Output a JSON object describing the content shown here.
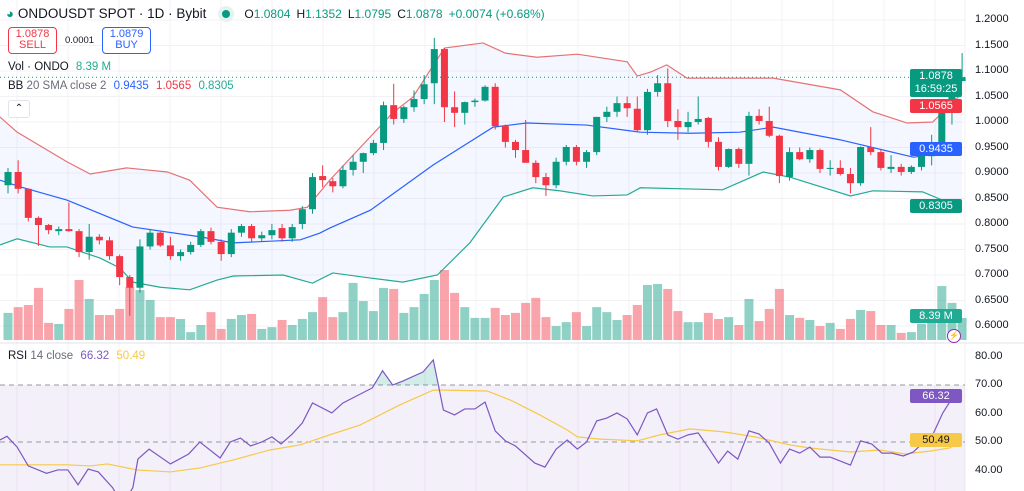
{
  "header": {
    "symbol": "ONDOUSDT SPOT · 1D · Bybit",
    "ohlc": {
      "o_label": "O",
      "o": "1.0804",
      "h_label": "H",
      "h": "1.1352",
      "l_label": "L",
      "l": "1.0795",
      "c_label": "C",
      "c": "1.0878",
      "change": "+0.0074 (+0.68%)"
    },
    "sell_price": "1.0878",
    "sell_label": "SELL",
    "spread": "0.0001",
    "buy_price": "1.0879",
    "buy_label": "BUY",
    "vol_label": "Vol · ONDO",
    "vol_value": "8.39 M",
    "bb_label": "BB",
    "bb_params": "20 SMA close 2",
    "bb_basis": "0.9435",
    "bb_upper": "1.0565",
    "bb_lower": "0.8305",
    "rsi_label": "RSI",
    "rsi_params": "14 close",
    "rsi_value": "66.32",
    "rsi_ma": "50.49",
    "collapse_icon": "chevron-up-icon"
  },
  "price_axis": [
    "1.2000",
    "1.1500",
    "1.1000",
    "1.0500",
    "1.0000",
    "0.9500",
    "0.9000",
    "0.8500",
    "0.8000",
    "0.7500",
    "0.7000",
    "0.6500",
    "0.6000"
  ],
  "rsi_axis": [
    "80.00",
    "70.00",
    "60.00",
    "50.00",
    "40.00"
  ],
  "tags": {
    "last_price": "1.0878",
    "countdown": "16:59:25",
    "bb_upper": "1.0565",
    "bb_basis": "0.9435",
    "bb_lower": "0.8305",
    "volume": "8.39 M",
    "rsi": "66.32",
    "rsi_ma": "50.49"
  },
  "colors": {
    "up": "#089981",
    "down": "#f23645",
    "basis": "#2962ff",
    "upper": "#e57373",
    "lower": "#22ab94",
    "rsi": "#7e57c2",
    "rsi_ma": "#f7c948"
  },
  "chart_data": {
    "type": "candlestick",
    "title": "ONDOUSDT SPOT · 1D · Bybit",
    "ylim": [
      0.6,
      1.2
    ],
    "candles_ohlc": [
      [
        0.876,
        0.91,
        0.86,
        0.902
      ],
      [
        0.902,
        0.925,
        0.86,
        0.869
      ],
      [
        0.869,
        0.87,
        0.805,
        0.812
      ],
      [
        0.812,
        0.815,
        0.757,
        0.798
      ],
      [
        0.798,
        0.8,
        0.78,
        0.788
      ],
      [
        0.786,
        0.795,
        0.778,
        0.79
      ],
      [
        0.79,
        0.842,
        0.785,
        0.786
      ],
      [
        0.786,
        0.79,
        0.735,
        0.745
      ],
      [
        0.745,
        0.8,
        0.73,
        0.775
      ],
      [
        0.775,
        0.78,
        0.76,
        0.768
      ],
      [
        0.768,
        0.775,
        0.73,
        0.737
      ],
      [
        0.737,
        0.74,
        0.68,
        0.696
      ],
      [
        0.696,
        0.7,
        0.62,
        0.675
      ],
      [
        0.675,
        0.77,
        0.665,
        0.756
      ],
      [
        0.756,
        0.79,
        0.75,
        0.783
      ],
      [
        0.783,
        0.785,
        0.755,
        0.758
      ],
      [
        0.758,
        0.775,
        0.73,
        0.737
      ],
      [
        0.737,
        0.75,
        0.728,
        0.745
      ],
      [
        0.745,
        0.765,
        0.74,
        0.759
      ],
      [
        0.759,
        0.79,
        0.755,
        0.786
      ],
      [
        0.786,
        0.793,
        0.76,
        0.765
      ],
      [
        0.765,
        0.77,
        0.728,
        0.741
      ],
      [
        0.741,
        0.79,
        0.735,
        0.783
      ],
      [
        0.783,
        0.8,
        0.775,
        0.796
      ],
      [
        0.796,
        0.8,
        0.765,
        0.772
      ],
      [
        0.772,
        0.785,
        0.765,
        0.778
      ],
      [
        0.778,
        0.8,
        0.77,
        0.788
      ],
      [
        0.792,
        0.8,
        0.765,
        0.772
      ],
      [
        0.772,
        0.8,
        0.765,
        0.794
      ],
      [
        0.8,
        0.835,
        0.79,
        0.829
      ],
      [
        0.829,
        0.9,
        0.82,
        0.892
      ],
      [
        0.894,
        0.915,
        0.872,
        0.886
      ],
      [
        0.884,
        0.89,
        0.862,
        0.874
      ],
      [
        0.874,
        0.915,
        0.87,
        0.906
      ],
      [
        0.906,
        0.935,
        0.895,
        0.922
      ],
      [
        0.922,
        0.94,
        0.9,
        0.939
      ],
      [
        0.939,
        0.965,
        0.935,
        0.959
      ],
      [
        0.959,
        1.04,
        0.945,
        1.033
      ],
      [
        1.033,
        1.075,
        0.995,
        1.006
      ],
      [
        1.006,
        1.032,
        0.998,
        1.029
      ],
      [
        1.029,
        1.062,
        1.02,
        1.045
      ],
      [
        1.045,
        1.092,
        1.035,
        1.074
      ],
      [
        1.076,
        1.165,
        1.035,
        1.143
      ],
      [
        1.143,
        1.145,
        1.0,
        1.029
      ],
      [
        1.029,
        1.06,
        0.99,
        1.018
      ],
      [
        1.018,
        1.04,
        0.995,
        1.039
      ],
      [
        1.039,
        1.046,
        1.03,
        1.042
      ],
      [
        1.042,
        1.072,
        1.04,
        1.069
      ],
      [
        1.069,
        1.076,
        0.985,
        0.992
      ],
      [
        0.992,
        0.995,
        0.95,
        0.961
      ],
      [
        0.961,
        0.965,
        0.93,
        0.945
      ],
      [
        0.945,
        1.004,
        0.93,
        0.92
      ],
      [
        0.92,
        0.925,
        0.88,
        0.892
      ],
      [
        0.892,
        0.9,
        0.855,
        0.876
      ],
      [
        0.876,
        0.93,
        0.87,
        0.922
      ],
      [
        0.922,
        0.955,
        0.915,
        0.951
      ],
      [
        0.951,
        0.955,
        0.915,
        0.922
      ],
      [
        0.922,
        0.945,
        0.91,
        0.941
      ],
      [
        0.941,
        1.01,
        0.935,
        1.01
      ],
      [
        1.01,
        1.03,
        1.0,
        1.02
      ],
      [
        1.02,
        1.05,
        1.01,
        1.037
      ],
      [
        1.037,
        1.05,
        1.01,
        1.027
      ],
      [
        1.026,
        1.05,
        0.98,
        0.984
      ],
      [
        0.984,
        1.065,
        0.975,
        1.059
      ],
      [
        1.059,
        1.092,
        1.05,
        1.076
      ],
      [
        1.076,
        1.105,
        0.99,
        1.002
      ],
      [
        1.002,
        1.025,
        0.965,
        0.99
      ],
      [
        0.99,
        1.02,
        0.98,
        1.0
      ],
      [
        1.0,
        1.05,
        0.995,
        1.006
      ],
      [
        1.008,
        1.01,
        0.95,
        0.961
      ],
      [
        0.961,
        0.97,
        0.905,
        0.912
      ],
      [
        0.912,
        0.948,
        0.91,
        0.947
      ],
      [
        0.947,
        0.95,
        0.91,
        0.918
      ],
      [
        0.918,
        1.02,
        0.895,
        1.012
      ],
      [
        1.012,
        1.025,
        0.995,
        1.002
      ],
      [
        1.002,
        1.03,
        0.97,
        0.973
      ],
      [
        0.973,
        0.975,
        0.88,
        0.894
      ],
      [
        0.892,
        0.95,
        0.885,
        0.941
      ],
      [
        0.941,
        0.95,
        0.925,
        0.927
      ],
      [
        0.927,
        0.95,
        0.92,
        0.945
      ],
      [
        0.945,
        0.948,
        0.9,
        0.908
      ],
      [
        0.908,
        0.925,
        0.895,
        0.91
      ],
      [
        0.91,
        0.925,
        0.895,
        0.898
      ],
      [
        0.898,
        0.91,
        0.86,
        0.88
      ],
      [
        0.88,
        0.952,
        0.875,
        0.951
      ],
      [
        0.951,
        0.99,
        0.935,
        0.941
      ],
      [
        0.941,
        0.945,
        0.905,
        0.91
      ],
      [
        0.908,
        0.935,
        0.9,
        0.912
      ],
      [
        0.912,
        0.918,
        0.895,
        0.902
      ],
      [
        0.902,
        0.915,
        0.898,
        0.912
      ],
      [
        0.912,
        0.95,
        0.905,
        0.933
      ],
      [
        0.933,
        0.975,
        0.915,
        0.953
      ],
      [
        0.953,
        1.04,
        0.95,
        1.024
      ],
      [
        1.024,
        1.08,
        0.995,
        1.08
      ],
      [
        1.0804,
        1.1352,
        1.0795,
        1.0878
      ]
    ],
    "volume_millions": [
      10.3,
      12.5,
      13.3,
      19.8,
      6.5,
      6.1,
      11.8,
      22.8,
      15.6,
      9.5,
      9.5,
      11.8,
      20.1,
      19,
      15.2,
      8.7,
      8.7,
      8,
      3,
      5.7,
      10.6,
      4.2,
      8,
      9.5,
      9.9,
      4.2,
      4.9,
      7.6,
      5.7,
      8,
      10.6,
      16.3,
      8.7,
      10.6,
      21.7,
      14.8,
      11,
      19.8,
      19.4,
      10.3,
      12.5,
      17.5,
      22.8,
      26.6,
      17.9,
      12.5,
      8.4,
      8.4,
      12.2,
      9.5,
      10.3,
      14.1,
      16,
      8.7,
      5.3,
      6.8,
      10.6,
      5.3,
      12.5,
      10.6,
      7.6,
      9.5,
      13.3,
      20.9,
      21.3,
      19.4,
      11,
      6.8,
      6.8,
      10.3,
      8,
      8.7,
      5.7,
      15.6,
      7.2,
      11.8,
      19.4,
      9.5,
      8.4,
      7.6,
      5.3,
      6.5,
      4.2,
      8,
      11.4,
      11,
      5.7,
      5.7,
      2.7,
      3,
      6.1,
      10.3,
      20.5,
      14.1,
      8.39
    ],
    "bb_upper": [
      [
        -0.8,
        1.01
      ],
      [
        0.9,
        0.98
      ],
      [
        5.8,
        0.922
      ],
      [
        8.1,
        0.898
      ],
      [
        11.7,
        0.91
      ],
      [
        15.7,
        0.902
      ],
      [
        17.9,
        0.886
      ],
      [
        20.6,
        0.833
      ],
      [
        23.8,
        0.824
      ],
      [
        27.8,
        0.827
      ],
      [
        29.5,
        0.833
      ],
      [
        31.7,
        0.886
      ],
      [
        37.9,
        1.018
      ],
      [
        39.9,
        1.049
      ],
      [
        43,
        1.145
      ],
      [
        46.8,
        1.155
      ],
      [
        49,
        1.135
      ],
      [
        52.1,
        1.127
      ],
      [
        56.1,
        1.133
      ],
      [
        61,
        1.118
      ],
      [
        62,
        1.09
      ],
      [
        63.3,
        1.098
      ],
      [
        64.9,
        1.112
      ],
      [
        66.9,
        1.086
      ],
      [
        75.4,
        1.086
      ],
      [
        82,
        1.063
      ],
      [
        85.2,
        1.02
      ],
      [
        88.6,
        0.998
      ],
      [
        91.1,
        1.0
      ],
      [
        94,
        1.0565
      ]
    ],
    "bb_basis": [
      [
        -0.8,
        0.886
      ],
      [
        1.2,
        0.873
      ],
      [
        5.8,
        0.847
      ],
      [
        12.3,
        0.794
      ],
      [
        18.9,
        0.775
      ],
      [
        22.2,
        0.763
      ],
      [
        28.8,
        0.769
      ],
      [
        30.7,
        0.782
      ],
      [
        31.7,
        0.792
      ],
      [
        35.7,
        0.827
      ],
      [
        41.9,
        0.916
      ],
      [
        47.8,
        0.99
      ],
      [
        51.1,
        0.998
      ],
      [
        57,
        0.994
      ],
      [
        62.3,
        0.98
      ],
      [
        67.2,
        0.978
      ],
      [
        72.1,
        0.98
      ],
      [
        75.4,
        0.99
      ],
      [
        82,
        0.965
      ],
      [
        89.2,
        0.931
      ],
      [
        94,
        0.9435
      ]
    ],
    "bb_lower": [
      [
        -0.8,
        0.759
      ],
      [
        0.9,
        0.771
      ],
      [
        4.1,
        0.755
      ],
      [
        5.8,
        0.755
      ],
      [
        9.1,
        0.733
      ],
      [
        11,
        0.714
      ],
      [
        12.3,
        0.686
      ],
      [
        15,
        0.676
      ],
      [
        17.9,
        0.671
      ],
      [
        20.6,
        0.69
      ],
      [
        22.2,
        0.698
      ],
      [
        27.1,
        0.7
      ],
      [
        30,
        0.684
      ],
      [
        32,
        0.704
      ],
      [
        35.7,
        0.694
      ],
      [
        38.9,
        0.686
      ],
      [
        42.3,
        0.7
      ],
      [
        45.5,
        0.763
      ],
      [
        48.8,
        0.853
      ],
      [
        51.7,
        0.871
      ],
      [
        54.4,
        0.865
      ],
      [
        57.6,
        0.855
      ],
      [
        61,
        0.857
      ],
      [
        62.3,
        0.871
      ],
      [
        70.4,
        0.867
      ],
      [
        74.4,
        0.902
      ],
      [
        77,
        0.892
      ],
      [
        83,
        0.855
      ],
      [
        85.2,
        0.865
      ],
      [
        90.1,
        0.863
      ],
      [
        94,
        0.8305
      ]
    ],
    "rsi": [
      [
        -0.8,
        50.7
      ],
      [
        -0.1,
        52
      ],
      [
        0.9,
        48.2
      ],
      [
        2,
        41.6
      ],
      [
        3.8,
        39
      ],
      [
        4.9,
        40.2
      ],
      [
        5.9,
        40.2
      ],
      [
        6.9,
        35
      ],
      [
        7.9,
        40.5
      ],
      [
        8.9,
        39.5
      ],
      [
        10.3,
        34
      ],
      [
        11.3,
        28
      ],
      [
        12.3,
        34
      ],
      [
        12.8,
        44
      ],
      [
        13.9,
        47.5
      ],
      [
        16,
        42.3
      ],
      [
        17.8,
        45.8
      ],
      [
        18.9,
        50
      ],
      [
        20.9,
        44.4
      ],
      [
        21.9,
        50
      ],
      [
        22.9,
        51.4
      ],
      [
        23.9,
        48.6
      ],
      [
        25,
        50
      ],
      [
        26,
        51.8
      ],
      [
        26.9,
        49.3
      ],
      [
        28,
        52.8
      ],
      [
        29,
        56.7
      ],
      [
        30,
        63.7
      ],
      [
        31.9,
        60.2
      ],
      [
        33,
        63.7
      ],
      [
        35.9,
        69
      ],
      [
        36.9,
        75
      ],
      [
        37.9,
        70
      ],
      [
        38.9,
        71.4
      ],
      [
        40.9,
        74.6
      ],
      [
        41.9,
        78.8
      ],
      [
        42.9,
        61.2
      ],
      [
        44,
        59.5
      ],
      [
        45,
        61.6
      ],
      [
        46,
        61.6
      ],
      [
        47,
        64
      ],
      [
        48,
        53.9
      ],
      [
        49,
        50.4
      ],
      [
        50,
        48.6
      ],
      [
        51.9,
        42.6
      ],
      [
        52.9,
        41.2
      ],
      [
        54,
        47.5
      ],
      [
        55.1,
        50.7
      ],
      [
        56.1,
        47.5
      ],
      [
        57,
        50
      ],
      [
        58,
        57.4
      ],
      [
        59,
        58.4
      ],
      [
        60,
        60.2
      ],
      [
        61,
        58.1
      ],
      [
        62,
        52.5
      ],
      [
        63,
        60.2
      ],
      [
        63.9,
        61.6
      ],
      [
        65,
        52.5
      ],
      [
        66,
        51
      ],
      [
        67,
        52.5
      ],
      [
        68,
        53.2
      ],
      [
        69,
        48
      ],
      [
        70,
        42.6
      ],
      [
        70.9,
        46.8
      ],
      [
        71.9,
        44
      ],
      [
        73,
        53.9
      ],
      [
        74,
        52.8
      ],
      [
        75,
        49.6
      ],
      [
        76.1,
        42.6
      ],
      [
        77,
        47.5
      ],
      [
        78,
        46.1
      ],
      [
        79,
        48.2
      ],
      [
        80,
        44.7
      ],
      [
        81,
        44.7
      ],
      [
        82,
        43.3
      ],
      [
        83,
        41.9
      ],
      [
        84,
        50.4
      ],
      [
        85.1,
        49.3
      ],
      [
        86.1,
        46.1
      ],
      [
        87.1,
        46.1
      ],
      [
        88.2,
        45.1
      ],
      [
        89.2,
        46.5
      ],
      [
        90.1,
        49.6
      ],
      [
        91.1,
        52.5
      ],
      [
        92.1,
        60.2
      ],
      [
        93.1,
        65.8
      ],
      [
        94,
        66.32
      ]
    ],
    "rsi_ma": [
      [
        -0.8,
        42
      ],
      [
        5.8,
        42
      ],
      [
        8.1,
        41.6
      ],
      [
        9.8,
        42.3
      ],
      [
        12.7,
        40.2
      ],
      [
        16,
        39.5
      ],
      [
        18.9,
        40.9
      ],
      [
        22.2,
        43.7
      ],
      [
        25.8,
        47.2
      ],
      [
        28.8,
        49
      ],
      [
        31.7,
        52.5
      ],
      [
        34.7,
        56
      ],
      [
        38.6,
        63
      ],
      [
        41.9,
        68.2
      ],
      [
        43,
        68.2
      ],
      [
        47.2,
        67.9
      ],
      [
        49.5,
        64.7
      ],
      [
        52.4,
        59.5
      ],
      [
        55.1,
        54.2
      ],
      [
        56.1,
        51.8
      ],
      [
        58.3,
        51
      ],
      [
        60.3,
        50.7
      ],
      [
        62,
        50.4
      ],
      [
        64.2,
        52.5
      ],
      [
        67.2,
        54.6
      ],
      [
        70.6,
        53.5
      ],
      [
        73.6,
        51.8
      ],
      [
        77,
        49
      ],
      [
        79,
        47.9
      ],
      [
        83,
        46.5
      ],
      [
        85.9,
        47.2
      ],
      [
        88.4,
        45.8
      ],
      [
        90.8,
        46.8
      ],
      [
        92.8,
        47.9
      ],
      [
        94,
        50.49
      ]
    ],
    "rsi_ylim": [
      30,
      80
    ],
    "rsi_bands": [
      70,
      50
    ]
  }
}
